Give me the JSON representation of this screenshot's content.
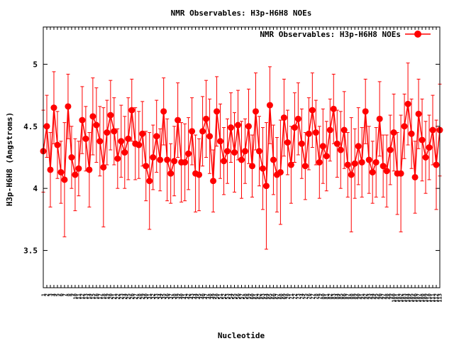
{
  "chart_data": {
    "type": "line",
    "title": "NMR Observables: H3p-H6H8 NOEs",
    "xlabel": "Nucleotide",
    "ylabel": "H3p-H6H8 (Angstroms)",
    "ylim": [
      3.2,
      5.3
    ],
    "yticks": [
      3.5,
      4,
      4.5,
      5
    ],
    "ytick_labels": [
      "3.5",
      "4",
      "4.5",
      "5"
    ],
    "grid": false,
    "legend_position": "top-right",
    "colors": {
      "series": "#ff0000",
      "axis": "#000000"
    },
    "series": [
      {
        "name": "NMR Observables: H3p-H6H8 NOEs",
        "values": [
          4.3,
          4.5,
          4.15,
          4.65,
          4.35,
          4.13,
          4.07,
          4.66,
          4.25,
          4.11,
          4.16,
          4.55,
          4.4,
          4.15,
          4.58,
          4.51,
          4.38,
          4.17,
          4.45,
          4.59,
          4.46,
          4.24,
          4.38,
          4.29,
          4.4,
          4.63,
          4.36,
          4.35,
          4.44,
          4.18,
          4.06,
          4.25,
          4.42,
          4.23,
          4.62,
          4.23,
          4.12,
          4.22,
          4.55,
          4.21,
          4.21,
          4.28,
          4.46,
          4.12,
          4.11,
          4.46,
          4.56,
          4.42,
          4.06,
          4.62,
          4.38,
          4.22,
          4.3,
          4.49,
          4.29,
          4.51,
          4.23,
          4.3,
          4.5,
          4.18,
          4.62,
          4.3,
          4.16,
          4.02,
          4.67,
          4.23,
          4.11,
          4.13,
          4.57,
          4.37,
          4.19,
          4.49,
          4.56,
          4.36,
          4.18,
          4.44,
          4.63,
          4.45,
          4.21,
          4.34,
          4.26,
          4.47,
          4.64,
          4.36,
          4.31,
          4.47,
          4.19,
          4.11,
          4.2,
          4.34,
          4.21,
          4.62,
          4.23,
          4.13,
          4.21,
          4.56,
          4.18,
          4.14,
          4.31,
          4.45,
          4.12,
          4.12,
          4.5,
          4.68,
          4.44,
          4.09,
          4.6,
          4.39,
          4.25,
          4.33,
          4.47,
          4.19,
          4.47
        ],
        "errors": [
          0.33,
          0.25,
          0.3,
          0.29,
          0.27,
          0.25,
          0.46,
          0.26,
          0.25,
          0.29,
          0.22,
          0.27,
          0.26,
          0.3,
          0.31,
          0.3,
          0.28,
          0.48,
          0.26,
          0.28,
          0.27,
          0.24,
          0.29,
          0.29,
          0.33,
          0.25,
          0.29,
          0.27,
          0.26,
          0.28,
          0.39,
          0.26,
          0.29,
          0.25,
          0.27,
          0.33,
          0.24,
          0.28,
          0.3,
          0.32,
          0.31,
          0.29,
          0.27,
          0.31,
          0.29,
          0.28,
          0.31,
          0.3,
          0.25,
          0.28,
          0.3,
          0.27,
          0.26,
          0.28,
          0.32,
          0.28,
          0.31,
          0.26,
          0.3,
          0.25,
          0.31,
          0.28,
          0.33,
          0.51,
          0.31,
          0.28,
          0.3,
          0.42,
          0.31,
          0.26,
          0.31,
          0.28,
          0.29,
          0.28,
          0.27,
          0.29,
          0.3,
          0.26,
          0.29,
          0.3,
          0.28,
          0.25,
          0.28,
          0.27,
          0.31,
          0.31,
          0.26,
          0.46,
          0.28,
          0.31,
          0.28,
          0.26,
          0.27,
          0.25,
          0.28,
          0.3,
          0.25,
          0.29,
          0.28,
          0.31,
          0.33,
          0.47,
          0.26,
          0.33,
          0.28,
          0.29,
          0.28,
          0.33,
          0.29,
          0.26,
          0.28,
          0.36,
          0.37
        ]
      }
    ],
    "x_tick_labels": [
      "1",
      "2",
      "3",
      "4",
      "5",
      "6",
      "7",
      "8",
      "9",
      "10",
      "11",
      "12",
      "13",
      "14",
      "15",
      "16",
      "17",
      "18",
      "19",
      "20",
      "21",
      "22",
      "23",
      "24",
      "25",
      "26",
      "27",
      "28",
      "29",
      "30",
      "31",
      "32",
      "33",
      "34",
      "35",
      "36",
      "37",
      "38",
      "39",
      "40",
      "41",
      "42",
      "43",
      "44",
      "45",
      "46",
      "47",
      "48",
      "49",
      "50",
      "51",
      "52",
      "53",
      "54",
      "55",
      "56",
      "57",
      "58",
      "59",
      "60",
      "61",
      "62",
      "63",
      "64",
      "65",
      "66",
      "67",
      "68",
      "69",
      "70",
      "71",
      "72",
      "73",
      "74",
      "75",
      "76",
      "77",
      "78",
      "79",
      "80",
      "81",
      "82",
      "83",
      "84",
      "85",
      "86",
      "87",
      "88",
      "89",
      "90",
      "91",
      "92",
      "93",
      "94",
      "95",
      "96",
      "97",
      "98",
      "99",
      "100",
      "101",
      "102",
      "103",
      "104",
      "105",
      "106",
      "107",
      "108",
      "109",
      "110",
      "111",
      "112",
      "113"
    ]
  }
}
